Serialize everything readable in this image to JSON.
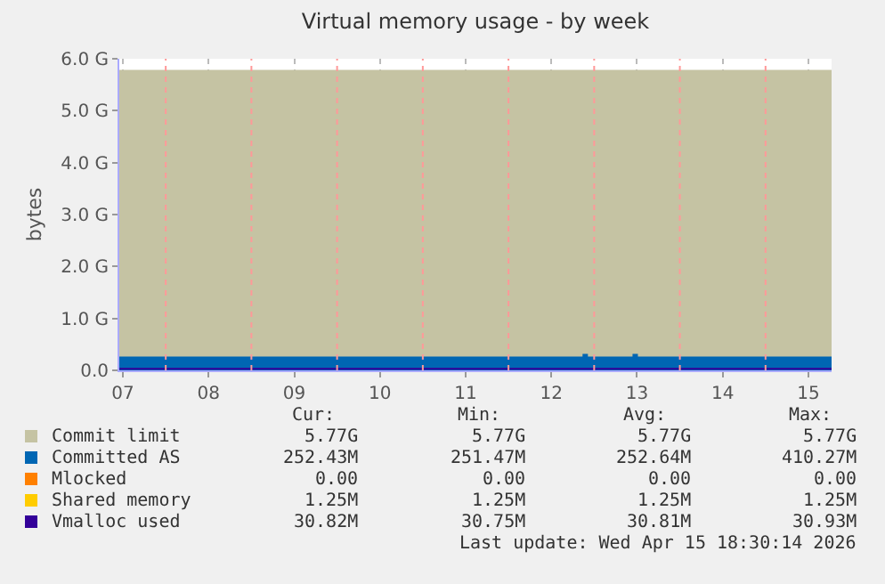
{
  "chart_data": {
    "type": "area",
    "title": "Virtual memory usage - by week",
    "ylabel": "bytes",
    "xlim": [
      "2026-04-07T11:00",
      "2026-04-15T18:30"
    ],
    "xticks": [
      {
        "value": "2026-04-07T12:00",
        "label": "07"
      },
      {
        "value": "2026-04-08T12:00",
        "label": "08"
      },
      {
        "value": "2026-04-09T12:00",
        "label": "09"
      },
      {
        "value": "2026-04-10T12:00",
        "label": "10"
      },
      {
        "value": "2026-04-11T12:00",
        "label": "11"
      },
      {
        "value": "2026-04-12T12:00",
        "label": "12"
      },
      {
        "value": "2026-04-13T12:00",
        "label": "13"
      },
      {
        "value": "2026-04-14T12:00",
        "label": "14"
      },
      {
        "value": "2026-04-15T12:00",
        "label": "15"
      }
    ],
    "ylim": [
      0,
      6
    ],
    "yticks": [
      {
        "value": 0,
        "label": "0.0"
      },
      {
        "value": 1,
        "label": "1.0 G"
      },
      {
        "value": 2,
        "label": "2.0 G"
      },
      {
        "value": 3,
        "label": "3.0 G"
      },
      {
        "value": 4,
        "label": "4.0 G"
      },
      {
        "value": 5,
        "label": "5.0 G"
      },
      {
        "value": 6,
        "label": "6.0 G"
      }
    ],
    "grid": true,
    "legend": "bottom",
    "x": [
      "2026-04-07T11:00",
      "2026-04-12T21:00",
      "2026-04-12T22:00",
      "2026-04-13T11:00",
      "2026-04-13T12:00",
      "2026-04-15T18:30"
    ],
    "series": [
      {
        "name": "Commit limit",
        "color": "#c5c3a3",
        "values": [
          5.77,
          5.77,
          5.77,
          5.77,
          5.77,
          5.77
        ]
      },
      {
        "name": "Committed AS",
        "color": "#0066b3",
        "values": [
          0.25,
          0.3,
          0.25,
          0.3,
          0.25,
          0.25
        ]
      },
      {
        "name": "Mlocked",
        "color": "#ff8000",
        "type": "line",
        "values": [
          null,
          null,
          null,
          null,
          null,
          null
        ]
      },
      {
        "name": "Shared memory",
        "color": "#ffcc00",
        "type": "line",
        "values": [
          null,
          null,
          null,
          null,
          null,
          null
        ]
      },
      {
        "name": "Vmalloc used",
        "color": "#330099",
        "type": "line",
        "values": [
          0.03,
          0.03,
          0.03,
          0.03,
          0.03,
          0.03
        ]
      }
    ],
    "ref_lines": [
      {
        "axis": "x",
        "value": "2026-04-08",
        "color": "#ff9999",
        "line_style": "dotted"
      },
      {
        "axis": "x",
        "value": "2026-04-09",
        "color": "#ff9999",
        "line_style": "dotted"
      },
      {
        "axis": "x",
        "value": "2026-04-10",
        "color": "#ff9999",
        "line_style": "dotted"
      },
      {
        "axis": "x",
        "value": "2026-04-11",
        "color": "#ff9999",
        "line_style": "dotted"
      },
      {
        "axis": "x",
        "value": "2026-04-12",
        "color": "#ff9999",
        "line_style": "dotted"
      },
      {
        "axis": "x",
        "value": "2026-04-13",
        "color": "#ff9999",
        "line_style": "dotted"
      },
      {
        "axis": "x",
        "value": "2026-04-14",
        "color": "#ff9999",
        "line_style": "dotted"
      },
      {
        "axis": "x",
        "value": "2026-04-15",
        "color": "#ff9999",
        "line_style": "dotted"
      }
    ],
    "annotations": [
      "Cur:",
      "Min:",
      "Avg:",
      "Max:",
      "5.77G",
      "5.77G",
      "5.77G",
      "5.77G",
      "252.43M",
      "251.47M",
      "252.64M",
      "410.27M",
      "0.00",
      "0.00",
      "0.00",
      "0.00",
      "1.25M",
      "1.25M",
      "1.25M",
      "1.25M",
      "30.82M",
      "30.75M",
      "30.81M",
      "30.93M",
      "Last update: Wed Apr 15 18:30:14 2026"
    ]
  }
}
